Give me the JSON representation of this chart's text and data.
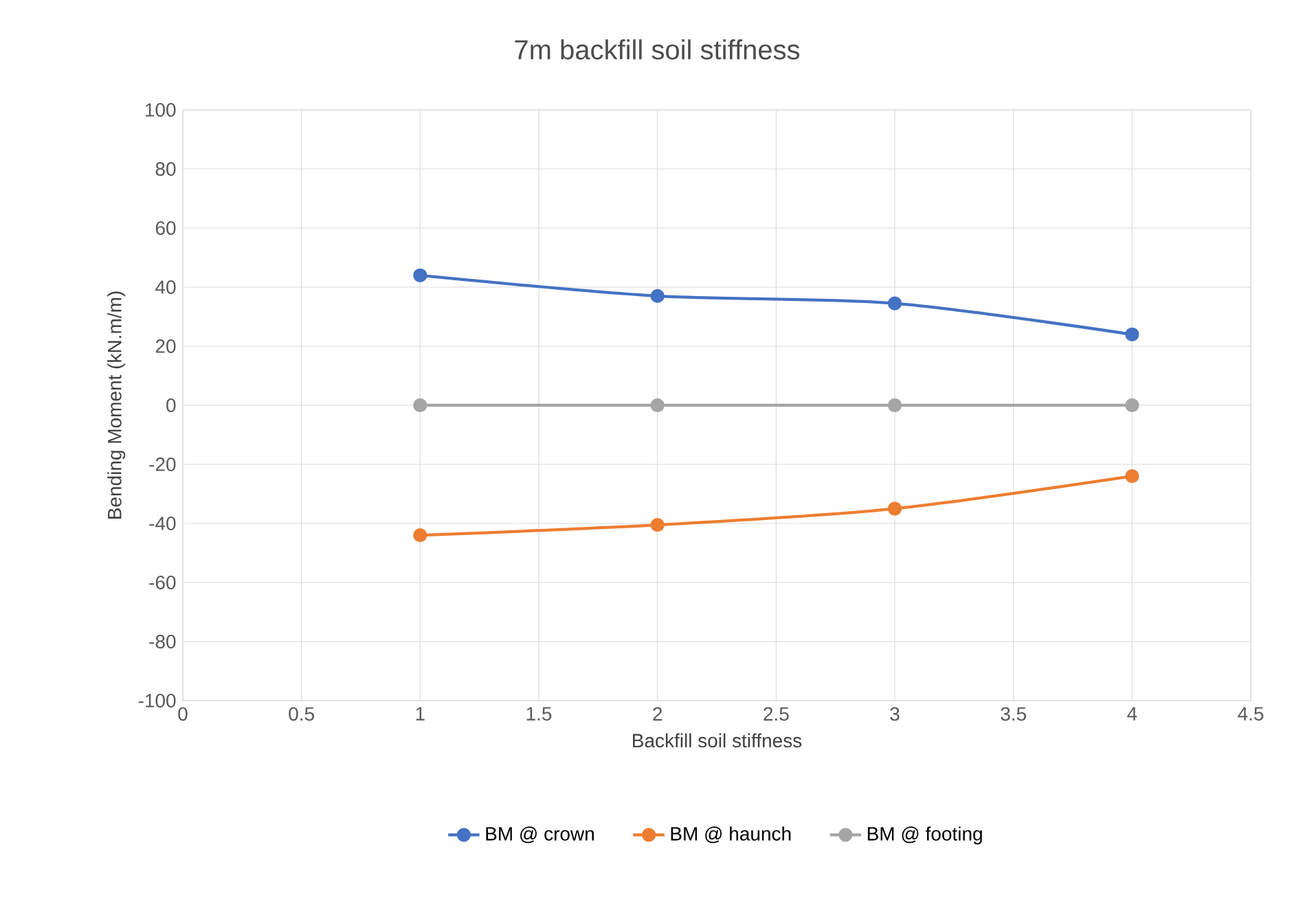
{
  "chart_data": {
    "type": "line",
    "title": "7m backfill soil stiffness",
    "xlabel": "Backfill soil stiffness",
    "ylabel": "Bending Moment (kN.m/m)",
    "x": [
      1,
      2,
      3,
      4
    ],
    "series": [
      {
        "name": "BM @ crown",
        "color": "#4472c4",
        "values": [
          44,
          37,
          34.5,
          24
        ]
      },
      {
        "name": "BM @ haunch",
        "color": "#ed7d31",
        "values": [
          -44,
          -40.5,
          -35,
          -24
        ]
      },
      {
        "name": "BM @ footing",
        "color": "#a5a5a5",
        "values": [
          0,
          0,
          0,
          0
        ]
      }
    ],
    "xlim": [
      0,
      4.5
    ],
    "xticks": [
      0,
      0.5,
      1,
      1.5,
      2,
      2.5,
      3,
      3.5,
      4,
      4.5
    ],
    "ylim": [
      -100,
      100
    ],
    "yticks": [
      -100,
      -80,
      -60,
      -40,
      -20,
      0,
      20,
      40,
      60,
      80,
      100
    ],
    "grid": true,
    "legend": "bottom",
    "marker": "circle",
    "line_style": "solid"
  }
}
